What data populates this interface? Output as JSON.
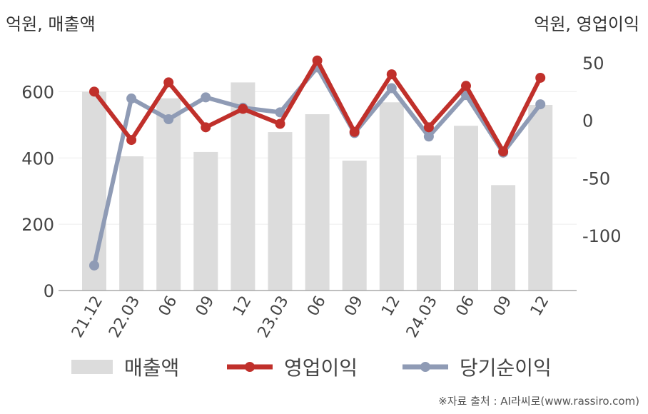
{
  "units": {
    "left": "억원, 매출액",
    "right": "억원, 영업이익"
  },
  "legend": {
    "revenue": "매출액",
    "operating_profit": "영업이익",
    "net_income": "당기순이익"
  },
  "source": "※자료 출처 : AI라씨로(www.rassiro.com)",
  "colors": {
    "revenue": "#dcdcdc",
    "operating_profit": "#c0302b",
    "net_income": "#8f9bb5",
    "axis": "#aaaaaa",
    "grid": "#eeeeee"
  },
  "chart_data": {
    "type": "bar",
    "categories": [
      "21.12",
      "22.03",
      "06",
      "09",
      "12",
      "23.03",
      "06",
      "09",
      "12",
      "24.03",
      "06",
      "09",
      "12"
    ],
    "series": [
      {
        "name": "매출액",
        "type": "bar",
        "axis": "left",
        "values": [
          600,
          405,
          580,
          418,
          628,
          478,
          532,
          392,
          568,
          408,
          497,
          318,
          560
        ]
      },
      {
        "name": "영업이익",
        "type": "line",
        "axis": "right",
        "values": [
          25,
          -17,
          33,
          -6,
          10,
          -3,
          52,
          -10,
          40,
          -6,
          30,
          -27,
          37
        ]
      },
      {
        "name": "당기순이익",
        "type": "line",
        "axis": "right",
        "values": [
          -126,
          19,
          1,
          20,
          11,
          7,
          46,
          -11,
          28,
          -14,
          22,
          -28,
          14
        ]
      }
    ],
    "y_left": {
      "ticks": [
        0,
        200,
        400,
        600
      ],
      "range": [
        0,
        700
      ]
    },
    "y_right": {
      "ticks": [
        -100,
        -50,
        0,
        50
      ],
      "range": [
        -146,
        60
      ]
    },
    "legend_position": "bottom",
    "grid": true
  }
}
